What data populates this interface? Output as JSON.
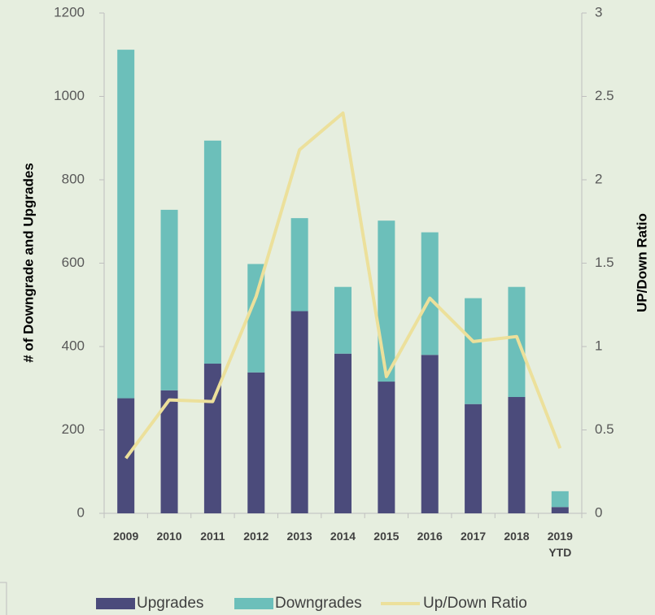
{
  "chart_data": {
    "type": "bar",
    "categories": [
      "2009",
      "2010",
      "2011",
      "2012",
      "2013",
      "2014",
      "2015",
      "2016",
      "2017",
      "2018",
      "2019 YTD"
    ],
    "series": [
      {
        "name": "Upgrades",
        "color": "#4b4b7b",
        "values": [
          276,
          295,
          359,
          338,
          485,
          383,
          316,
          380,
          262,
          279,
          15
        ]
      },
      {
        "name": "Downgrades",
        "color": "#6cbfba",
        "values": [
          836,
          433,
          535,
          260,
          223,
          160,
          386,
          294,
          254,
          264,
          38
        ]
      },
      {
        "name": "Up/Down Ratio",
        "color": "#ece09b",
        "type": "line",
        "axis": "y2",
        "values": [
          0.33,
          0.68,
          0.67,
          1.3,
          2.18,
          2.4,
          0.82,
          1.29,
          1.03,
          1.06,
          0.39
        ]
      }
    ],
    "stacked": true,
    "ylabel": "# of Downgrade and Upgrades",
    "y2label": "UP/Down Ratio",
    "ylim": [
      0,
      1200
    ],
    "yticks": [
      0,
      200,
      400,
      600,
      800,
      1000,
      1200
    ],
    "y2lim": [
      0,
      3
    ],
    "y2ticks": [
      0,
      0.5,
      1,
      1.5,
      2,
      2.5,
      3
    ],
    "legend": "bottom"
  }
}
